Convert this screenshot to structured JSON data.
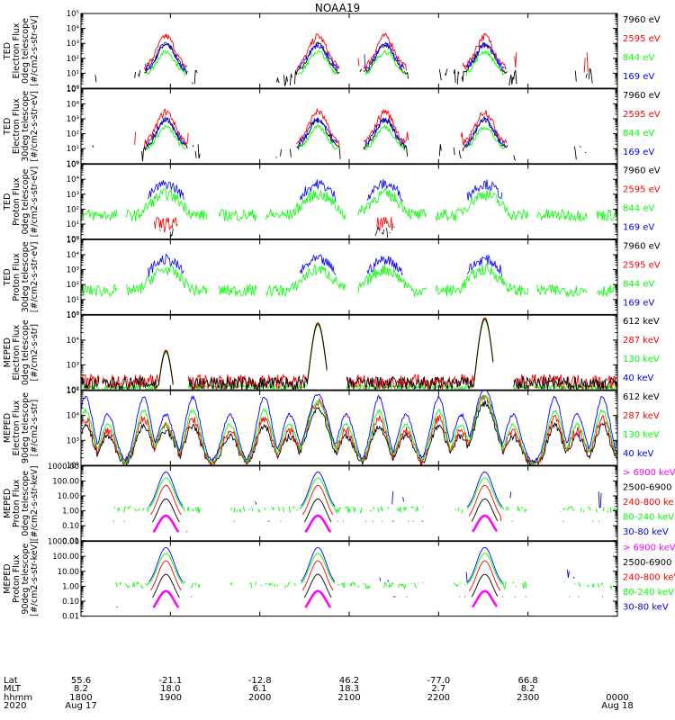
{
  "title": "NOAA19",
  "colors": {
    "black": "#000000",
    "red": "#ff0000",
    "green": "#00ff00",
    "blue": "#0000ff",
    "magenta": "#ff00ff"
  },
  "panels": [
    {
      "name": "ted-electron-0deg",
      "ylabel": [
        "TED",
        "Electron Flux",
        "0deg telescope",
        "[#/cm2-s-str-eV]"
      ],
      "scale": "log",
      "ylim": [
        1,
        100000
      ],
      "yticks": [
        "10⁰",
        "10¹",
        "10²",
        "10³",
        "10⁴",
        "10⁵"
      ],
      "legend": [
        {
          "label": "7960 eV",
          "color": "#000000"
        },
        {
          "label": "2595 eV",
          "color": "#ff0000"
        },
        {
          "label": "844 eV",
          "color": "#00ff00"
        },
        {
          "label": "169 eV",
          "color": "#0000ff"
        }
      ],
      "style": "ted_e"
    },
    {
      "name": "ted-electron-30deg",
      "ylabel": [
        "TED",
        "Electron Flux",
        "30deg telescope",
        "[#/cm2-s-str-eV]"
      ],
      "scale": "log",
      "ylim": [
        1,
        100000
      ],
      "yticks": [
        "10⁰",
        "10¹",
        "10²",
        "10³",
        "10⁴",
        "10⁵"
      ],
      "legend": [
        {
          "label": "7960 eV",
          "color": "#000000"
        },
        {
          "label": "2595 eV",
          "color": "#ff0000"
        },
        {
          "label": "844 eV",
          "color": "#00ff00"
        },
        {
          "label": "169 eV",
          "color": "#0000ff"
        }
      ],
      "style": "ted_e"
    },
    {
      "name": "ted-proton-0deg",
      "ylabel": [
        "TED",
        "Proton Flux",
        "0deg telescope",
        "[#/cm2-s-str-eV]"
      ],
      "scale": "log",
      "ylim": [
        1,
        100000
      ],
      "yticks": [
        "10⁰",
        "10¹",
        "10²",
        "10³",
        "10⁴",
        "10⁵"
      ],
      "legend": [
        {
          "label": "7960 eV",
          "color": "#000000"
        },
        {
          "label": "2595 eV",
          "color": "#ff0000"
        },
        {
          "label": "844 eV",
          "color": "#00ff00"
        },
        {
          "label": "169 eV",
          "color": "#0000ff"
        }
      ],
      "style": "ted_p"
    },
    {
      "name": "ted-proton-30deg",
      "ylabel": [
        "TED",
        "Proton Flux",
        "30deg telescope",
        "[#/cm2-s-str-eV]"
      ],
      "scale": "log",
      "ylim": [
        1,
        100000
      ],
      "yticks": [
        "10⁰",
        "10¹",
        "10²",
        "10³",
        "10⁴",
        "10⁵"
      ],
      "legend": [
        {
          "label": "7960 eV",
          "color": "#000000"
        },
        {
          "label": "2595 eV",
          "color": "#ff0000"
        },
        {
          "label": "844 eV",
          "color": "#00ff00"
        },
        {
          "label": "169 eV",
          "color": "#0000ff"
        }
      ],
      "style": "ted_p"
    },
    {
      "name": "meped-electron-0deg",
      "ylabel": [
        "MEPED",
        "Electron Flux",
        "0deg telescope",
        "[#/cm2-s-str]"
      ],
      "scale": "log",
      "ylim": [
        100,
        100000
      ],
      "yticks": [
        "10²",
        "10³",
        "10⁴",
        "10⁵"
      ],
      "legend": [
        {
          "label": "612 keV",
          "color": "#000000"
        },
        {
          "label": "287 keV",
          "color": "#ff0000"
        },
        {
          "label": "130 keV",
          "color": "#00ff00"
        },
        {
          "label": "40 keV",
          "color": "#0000ff"
        }
      ],
      "style": "meped_e0"
    },
    {
      "name": "meped-electron-90deg",
      "ylabel": [
        "MEPED",
        "Electron Flux",
        "90deg telescope",
        "[#/cm2-s-str]"
      ],
      "scale": "log",
      "ylim": [
        100,
        100000
      ],
      "yticks": [
        "10²",
        "10³",
        "10⁴",
        "10⁵"
      ],
      "legend": [
        {
          "label": "612 keV",
          "color": "#000000"
        },
        {
          "label": "287 keV",
          "color": "#ff0000"
        },
        {
          "label": "130 keV",
          "color": "#00ff00"
        },
        {
          "label": "40 keV",
          "color": "#0000ff"
        }
      ],
      "style": "meped_e90"
    },
    {
      "name": "meped-proton-0deg",
      "ylabel": [
        "MEPED",
        "Proton Flux",
        "0deg telescope",
        "[#/cm2-s-str-keV]"
      ],
      "scale": "log",
      "ylim": [
        0.01,
        1000
      ],
      "yticks": [
        "0.01",
        "0.10",
        "1.00",
        "10.00",
        "100.00",
        "1000.00"
      ],
      "legend": [
        {
          "label": "> 6900 keV",
          "color": "#ff00ff"
        },
        {
          "label": "2500-6900",
          "color": "#000000"
        },
        {
          "label": "240-800 ke",
          "color": "#ff0000"
        },
        {
          "label": "80-240 keV",
          "color": "#00ff00"
        },
        {
          "label": "30-80 keV",
          "color": "#0000ff"
        }
      ],
      "style": "meped_p"
    },
    {
      "name": "meped-proton-90deg",
      "ylabel": [
        "MEPED",
        "Proton Flux",
        "90deg telescope",
        "[#/cm2-s-str-keV]"
      ],
      "scale": "log",
      "ylim": [
        0.01,
        1000
      ],
      "yticks": [
        "0.01",
        "0.10",
        "1.00",
        "10.00",
        "100.00",
        "1000.00"
      ],
      "legend": [
        {
          "label": "> 6900 keV",
          "color": "#ff00ff"
        },
        {
          "label": "2500-6900",
          "color": "#000000"
        },
        {
          "label": "240-800 keV",
          "color": "#ff0000"
        },
        {
          "label": "80-240 keV",
          "color": "#00ff00"
        },
        {
          "label": "30-80 keV",
          "color": "#0000ff"
        }
      ],
      "style": "meped_p"
    }
  ],
  "xaxis": {
    "row_labels": [
      "Lat",
      "MLT",
      "hhmm",
      "2020"
    ],
    "range": [
      1800,
      2400
    ],
    "ticks": [
      {
        "t": 1800,
        "lat": "55.6",
        "mlt": "8.2",
        "hhmm": "1800",
        "date": "Aug 17"
      },
      {
        "t": 1900,
        "lat": "-21.1",
        "mlt": "18.0",
        "hhmm": "1900",
        "date": ""
      },
      {
        "t": 2000,
        "lat": "-12.8",
        "mlt": "6.1",
        "hhmm": "2000",
        "date": ""
      },
      {
        "t": 2100,
        "lat": "46.2",
        "mlt": "18.3",
        "hhmm": "2100",
        "date": ""
      },
      {
        "t": 2200,
        "lat": "-77.0",
        "mlt": "2.7",
        "hhmm": "2200",
        "date": ""
      },
      {
        "t": 2300,
        "lat": "66.8",
        "mlt": "8.2",
        "hhmm": "2300",
        "date": ""
      },
      {
        "t": 2400,
        "lat": "",
        "mlt": "",
        "hhmm": "0000",
        "date": "Aug 18"
      }
    ]
  },
  "chart_data": {
    "type": "line",
    "title": "NOAA19",
    "x_range_hhmm": [
      "1800",
      "0000"
    ],
    "panels_count": 8,
    "radiation_belt_peaks_hhmm": [
      "1857",
      "2039",
      "2124",
      "2231"
    ],
    "grid": false,
    "legend_placement": "right"
  }
}
